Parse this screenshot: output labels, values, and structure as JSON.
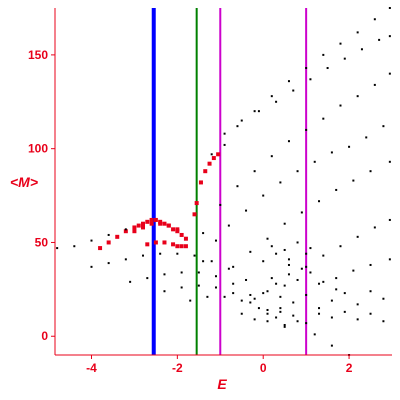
{
  "chart_data": {
    "type": "scatter",
    "xlabel": "E",
    "ylabel": "<M>",
    "xlim": [
      -4.85,
      3.0
    ],
    "ylim": [
      -10,
      175
    ],
    "x_ticks": [
      -4,
      -2,
      0,
      2
    ],
    "y_ticks": [
      0,
      50,
      100,
      150
    ],
    "x_tick_labels": [
      "-4",
      "-2",
      "0",
      "2"
    ],
    "y_tick_labels": [
      "0",
      "50",
      "100",
      "150"
    ],
    "axis_color": "#e8001a",
    "vertical_lines": [
      {
        "x": -2.55,
        "color": "#0000ff",
        "thick": true
      },
      {
        "x": -1.55,
        "color": "#008000",
        "thick": false
      },
      {
        "x": -1.0,
        "color": "#cc00cc",
        "thick": false
      },
      {
        "x": 1.0,
        "color": "#cc00cc",
        "thick": false
      }
    ],
    "series": [
      {
        "color": "#e8001a",
        "marker": "square",
        "points": [
          [
            -3.8,
            47
          ],
          [
            -3.6,
            50
          ],
          [
            -3.4,
            53
          ],
          [
            -3.2,
            56
          ],
          [
            -3.0,
            58
          ],
          [
            -2.9,
            59
          ],
          [
            -2.8,
            60
          ],
          [
            -2.7,
            61
          ],
          [
            -2.6,
            62
          ],
          [
            -2.5,
            62
          ],
          [
            -2.4,
            61
          ],
          [
            -2.3,
            60
          ],
          [
            -2.2,
            59
          ],
          [
            -2.1,
            57
          ],
          [
            -2.0,
            56
          ],
          [
            -1.9,
            54
          ],
          [
            -1.8,
            52
          ],
          [
            -3.0,
            56
          ],
          [
            -2.8,
            58
          ],
          [
            -2.6,
            60
          ],
          [
            -2.4,
            60
          ],
          [
            -2.2,
            59
          ],
          [
            -2.0,
            57
          ],
          [
            -2.7,
            49
          ],
          [
            -2.5,
            50
          ],
          [
            -2.3,
            50
          ],
          [
            -2.1,
            49
          ],
          [
            -2.0,
            48
          ],
          [
            -1.9,
            48
          ],
          [
            -1.8,
            48
          ],
          [
            -1.6,
            65
          ],
          [
            -1.55,
            71
          ],
          [
            -1.45,
            82
          ],
          [
            -1.35,
            88
          ],
          [
            -1.25,
            92
          ],
          [
            -1.15,
            95
          ],
          [
            -1.05,
            97
          ]
        ]
      },
      {
        "color": "#000000",
        "marker": "dot",
        "points": [
          [
            -4.8,
            47
          ],
          [
            -4.4,
            48
          ],
          [
            -4.0,
            51
          ],
          [
            -3.6,
            54
          ],
          [
            -3.2,
            57
          ],
          [
            -4.0,
            37
          ],
          [
            -3.6,
            39
          ],
          [
            -3.2,
            41
          ],
          [
            -2.8,
            43
          ],
          [
            -2.4,
            44
          ],
          [
            -2.0,
            44
          ],
          [
            -1.6,
            43
          ],
          [
            -1.2,
            40
          ],
          [
            -0.8,
            36
          ],
          [
            -0.4,
            30
          ],
          [
            0.0,
            23
          ],
          [
            0.4,
            15
          ],
          [
            0.8,
            8
          ],
          [
            1.2,
            1
          ],
          [
            1.6,
            -5
          ],
          [
            2.0,
            -10
          ],
          [
            -3.1,
            29
          ],
          [
            -2.7,
            31
          ],
          [
            -2.3,
            33
          ],
          [
            -1.9,
            34
          ],
          [
            -1.5,
            34
          ],
          [
            -1.1,
            32
          ],
          [
            -0.7,
            28
          ],
          [
            -0.3,
            22
          ],
          [
            0.1,
            14
          ],
          [
            0.5,
            6
          ],
          [
            -2.3,
            24
          ],
          [
            -1.9,
            26
          ],
          [
            -1.5,
            27
          ],
          [
            -1.1,
            26
          ],
          [
            -0.7,
            23
          ],
          [
            -0.3,
            18
          ],
          [
            0.1,
            12
          ],
          [
            0.5,
            5
          ],
          [
            -1.7,
            19
          ],
          [
            -1.3,
            21
          ],
          [
            -0.9,
            21
          ],
          [
            -0.5,
            19
          ],
          [
            -0.1,
            15
          ],
          [
            0.3,
            10
          ],
          [
            -1.4,
            40
          ],
          [
            -1.1,
            51
          ],
          [
            -0.8,
            59
          ],
          [
            -0.4,
            67
          ],
          [
            0.0,
            75
          ],
          [
            0.4,
            82
          ],
          [
            0.8,
            88
          ],
          [
            1.2,
            93
          ],
          [
            1.6,
            98
          ],
          [
            2.0,
            101
          ],
          [
            2.4,
            106
          ],
          [
            2.8,
            112
          ],
          [
            -1.4,
            55
          ],
          [
            -1.0,
            70
          ],
          [
            -0.6,
            80
          ],
          [
            -0.2,
            88
          ],
          [
            0.2,
            96
          ],
          [
            0.6,
            104
          ],
          [
            1.0,
            110
          ],
          [
            1.4,
            116
          ],
          [
            1.8,
            123
          ],
          [
            2.2,
            128
          ],
          [
            2.6,
            134
          ],
          [
            2.95,
            140
          ],
          [
            -1.2,
            97
          ],
          [
            -0.9,
            108
          ],
          [
            -0.5,
            115
          ],
          [
            -0.1,
            120
          ],
          [
            0.3,
            125
          ],
          [
            0.7,
            131
          ],
          [
            1.1,
            137
          ],
          [
            1.5,
            143
          ],
          [
            1.9,
            148
          ],
          [
            2.3,
            153
          ],
          [
            2.7,
            158
          ],
          [
            2.95,
            160
          ],
          [
            -0.7,
            37
          ],
          [
            -0.3,
            45
          ],
          [
            0.1,
            52
          ],
          [
            0.5,
            60
          ],
          [
            0.9,
            66
          ],
          [
            1.3,
            72
          ],
          [
            1.7,
            78
          ],
          [
            2.1,
            83
          ],
          [
            2.5,
            88
          ],
          [
            2.95,
            93
          ],
          [
            -0.9,
            102
          ],
          [
            -0.6,
            112
          ],
          [
            -0.2,
            120
          ],
          [
            0.2,
            128
          ],
          [
            0.6,
            136
          ],
          [
            1.0,
            143
          ],
          [
            1.4,
            150
          ],
          [
            1.8,
            156
          ],
          [
            2.2,
            162
          ],
          [
            2.6,
            169
          ],
          [
            2.95,
            175
          ],
          [
            0.3,
            28
          ],
          [
            0.6,
            33
          ],
          [
            1.0,
            37
          ],
          [
            1.4,
            43
          ],
          [
            1.8,
            48
          ],
          [
            2.2,
            53
          ],
          [
            2.6,
            58
          ],
          [
            2.95,
            62
          ],
          [
            1.3,
            28
          ],
          [
            1.7,
            31
          ],
          [
            2.1,
            35
          ],
          [
            2.5,
            38
          ],
          [
            2.95,
            41
          ],
          [
            -0.2,
            20
          ],
          [
            0.1,
            24
          ],
          [
            0.4,
            21
          ],
          [
            0.7,
            18
          ],
          [
            1.0,
            22
          ],
          [
            1.3,
            15
          ],
          [
            1.6,
            19
          ],
          [
            1.9,
            23
          ],
          [
            2.2,
            17
          ],
          [
            2.5,
            24
          ],
          [
            2.8,
            20
          ],
          [
            0.0,
            40
          ],
          [
            0.3,
            44
          ],
          [
            0.6,
            41
          ],
          [
            0.9,
            36
          ],
          [
            0.2,
            31
          ],
          [
            0.5,
            27
          ],
          [
            0.8,
            30
          ],
          [
            1.1,
            34
          ],
          [
            1.4,
            29
          ],
          [
            1.7,
            25
          ],
          [
            -0.5,
            12
          ],
          [
            -0.2,
            9
          ],
          [
            0.1,
            8
          ],
          [
            0.4,
            13
          ],
          [
            0.7,
            11
          ],
          [
            1.0,
            7
          ],
          [
            1.3,
            12
          ],
          [
            1.6,
            10
          ],
          [
            1.9,
            13
          ],
          [
            2.2,
            9
          ],
          [
            2.5,
            12
          ],
          [
            2.8,
            8
          ],
          [
            0.2,
            48
          ],
          [
            0.5,
            46
          ],
          [
            0.8,
            50
          ],
          [
            1.1,
            47
          ],
          [
            0.6,
            38
          ],
          [
            1.0,
            44
          ]
        ]
      }
    ]
  }
}
